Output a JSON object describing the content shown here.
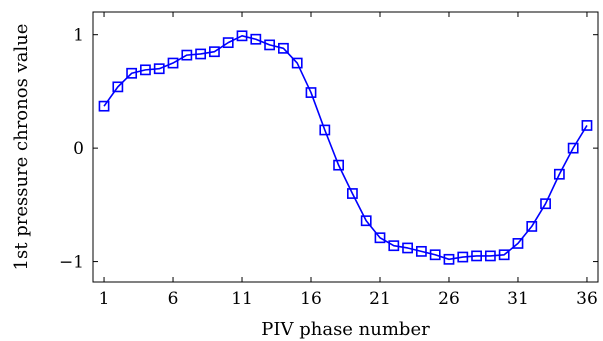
{
  "chart_data": {
    "type": "line",
    "title": "",
    "xlabel": "PIV phase number",
    "ylabel": "1st pressure chronos value",
    "xlim": [
      0.2,
      36.8
    ],
    "ylim": [
      -1.18,
      1.2
    ],
    "xticks": [
      1,
      6,
      11,
      16,
      21,
      26,
      31,
      36
    ],
    "xtick_labels": [
      "1",
      "6",
      "11",
      "16",
      "21",
      "26",
      "31",
      "36"
    ],
    "yticks": [
      -1,
      0,
      1
    ],
    "ytick_labels": [
      "−1",
      "0",
      "1"
    ],
    "grid": false,
    "marker": "square",
    "series": [
      {
        "color": "#0000ff",
        "x": [
          1,
          2,
          3,
          4,
          5,
          6,
          7,
          8,
          9,
          10,
          11,
          12,
          13,
          14,
          15,
          16,
          17,
          18,
          19,
          20,
          21,
          22,
          23,
          24,
          25,
          26,
          27,
          28,
          29,
          30,
          31,
          32,
          33,
          34,
          35,
          36
        ],
        "y": [
          0.37,
          0.54,
          0.66,
          0.69,
          0.7,
          0.75,
          0.82,
          0.83,
          0.85,
          0.93,
          0.99,
          0.96,
          0.91,
          0.88,
          0.75,
          0.49,
          0.16,
          -0.15,
          -0.4,
          -0.64,
          -0.79,
          -0.86,
          -0.88,
          -0.91,
          -0.94,
          -0.98,
          -0.96,
          -0.95,
          -0.95,
          -0.94,
          -0.84,
          -0.69,
          -0.49,
          -0.23,
          0.0,
          0.2
        ]
      }
    ]
  }
}
